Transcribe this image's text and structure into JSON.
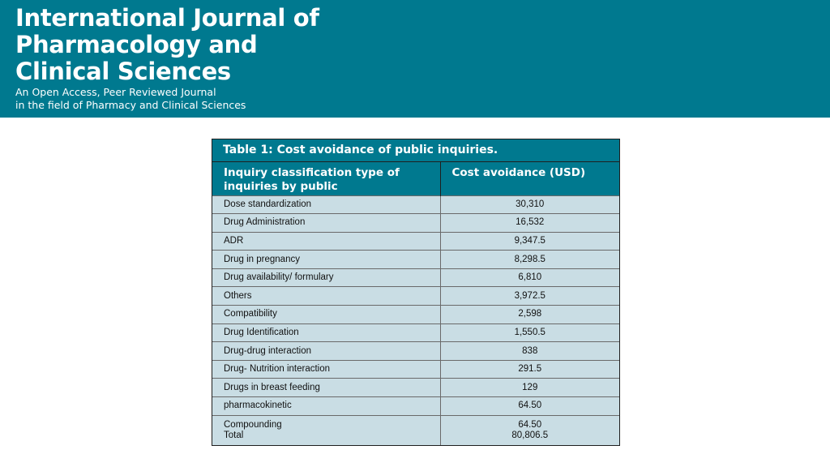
{
  "banner": {
    "title_lines": [
      "International Journal of",
      "Pharmacology and",
      "Clinical Sciences"
    ],
    "subtitle_lines": [
      "An Open Access, Peer Reviewed Journal",
      "in the field of Pharmacy and Clinical Sciences"
    ],
    "background_color": "#00798f"
  },
  "table": {
    "caption": "Table 1: Cost avoidance of public inquiries.",
    "columns": [
      "Inquiry classification type of inquiries by public",
      "Cost avoidance (USD)"
    ],
    "rows": [
      {
        "type": "Dose standardization",
        "cost": "30,310"
      },
      {
        "type": "Drug Administration",
        "cost": "16,532"
      },
      {
        "type": "ADR",
        "cost": "9,347.5"
      },
      {
        "type": "Drug in pregnancy",
        "cost": "8,298.5"
      },
      {
        "type": "Drug availability/ formulary",
        "cost": "6,810"
      },
      {
        "type": "Others",
        "cost": "3,972.5"
      },
      {
        "type": "Compatibility",
        "cost": "2,598"
      },
      {
        "type": "Drug Identification",
        "cost": "1,550.5"
      },
      {
        "type": "Drug-drug interaction",
        "cost": "838"
      },
      {
        "type": "Drug- Nutrition interaction",
        "cost": "291.5"
      },
      {
        "type": "Drugs in breast feeding",
        "cost": "129"
      },
      {
        "type": "pharmacokinetic",
        "cost": "64.50"
      },
      {
        "type": "Compounding",
        "cost": "64.50"
      }
    ],
    "total": {
      "label": "Total",
      "value": "80,806.5"
    },
    "header_color": "#00798f",
    "body_color": "#c9dde4"
  }
}
